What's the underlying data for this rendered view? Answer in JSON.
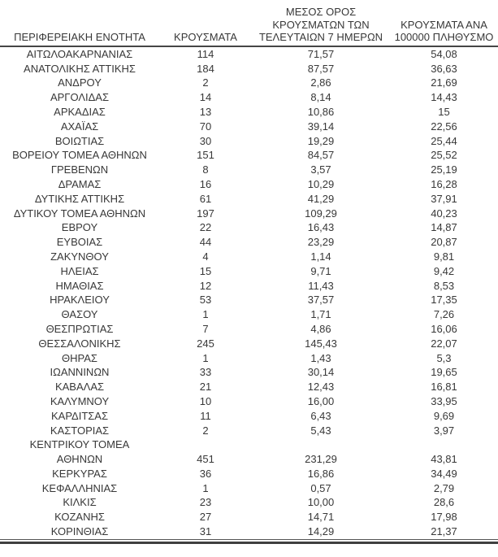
{
  "table": {
    "headers": [
      {
        "name": "region-unit",
        "lines": [
          "ΠΕΡΙΦΕΡΕΙΑΚΗ ΕΝΟΤΗΤΑ"
        ]
      },
      {
        "name": "cases",
        "lines": [
          "ΚΡΟΥΣΜΑΤΑ"
        ]
      },
      {
        "name": "avg-cases-7-days",
        "lines": [
          "ΜΕΣΟΣ ΟΡΟΣ",
          "ΚΡΟΥΣΜΑΤΩΝ ΤΩΝ",
          "ΤΕΛΕΥΤΑΙΩΝ 7 ΗΜΕΡΩΝ"
        ]
      },
      {
        "name": "cases-per-100k",
        "lines": [
          "ΚΡΟΥΣΜΑΤΑ ΑΝΑ",
          "100000 ΠΛΗΘΥΣΜΟ"
        ]
      }
    ],
    "rows": [
      [
        "ΑΙΤΩΛΟΑΚΑΡΝΑΝΙΑΣ",
        "114",
        "71,57",
        "54,08"
      ],
      [
        "ΑΝΑΤΟΛΙΚΗΣ ΑΤΤΙΚΗΣ",
        "184",
        "87,57",
        "36,63"
      ],
      [
        "ΑΝΔΡΟΥ",
        "2",
        "2,86",
        "21,69"
      ],
      [
        "ΑΡΓΟΛΙΔΑΣ",
        "14",
        "8,14",
        "14,43"
      ],
      [
        "ΑΡΚΑΔΙΑΣ",
        "13",
        "10,86",
        "15"
      ],
      [
        "ΑΧΑΪΑΣ",
        "70",
        "39,14",
        "22,56"
      ],
      [
        "ΒΟΙΩΤΙΑΣ",
        "30",
        "19,29",
        "25,44"
      ],
      [
        "ΒΟΡΕΙΟΥ ΤΟΜΕΑ ΑΘΗΝΩΝ",
        "151",
        "84,57",
        "25,52"
      ],
      [
        "ΓΡΕΒΕΝΩΝ",
        "8",
        "3,57",
        "25,19"
      ],
      [
        "ΔΡΑΜΑΣ",
        "16",
        "10,29",
        "16,28"
      ],
      [
        "ΔΥΤΙΚΗΣ ΑΤΤΙΚΗΣ",
        "61",
        "41,29",
        "37,91"
      ],
      [
        "ΔΥΤΙΚΟΥ ΤΟΜΕΑ ΑΘΗΝΩΝ",
        "197",
        "109,29",
        "40,23"
      ],
      [
        "ΕΒΡΟΥ",
        "22",
        "16,43",
        "14,87"
      ],
      [
        "ΕΥΒΟΙΑΣ",
        "44",
        "23,29",
        "20,87"
      ],
      [
        "ΖΑΚΥΝΘΟΥ",
        "4",
        "1,14",
        "9,81"
      ],
      [
        "ΗΛΕΙΑΣ",
        "15",
        "9,71",
        "9,42"
      ],
      [
        "ΗΜΑΘΙΑΣ",
        "12",
        "11,43",
        "8,53"
      ],
      [
        "ΗΡΑΚΛΕΙΟΥ",
        "53",
        "37,57",
        "17,35"
      ],
      [
        "ΘΑΣΟΥ",
        "1",
        "1,71",
        "7,26"
      ],
      [
        "ΘΕΣΠΡΩΤΙΑΣ",
        "7",
        "4,86",
        "16,06"
      ],
      [
        "ΘΕΣΣΑΛΟΝΙΚΗΣ",
        "245",
        "145,43",
        "22,07"
      ],
      [
        "ΘΗΡΑΣ",
        "1",
        "1,43",
        "5,3"
      ],
      [
        "ΙΩΑΝΝΙΝΩΝ",
        "33",
        "30,14",
        "19,65"
      ],
      [
        "ΚΑΒΑΛΑΣ",
        "21",
        "12,43",
        "16,81"
      ],
      [
        "ΚΑΛΥΜΝΟΥ",
        "10",
        "16,00",
        "33,95"
      ],
      [
        "ΚΑΡΔΙΤΣΑΣ",
        "11",
        "6,43",
        "9,69"
      ],
      [
        "ΚΑΣΤΟΡΙΑΣ",
        "2",
        "5,43",
        "3,97"
      ],
      [
        "ΚΕΝΤΡΙΚΟΥ ΤΟΜΕΑ\nΑΘΗΝΩΝ",
        "451",
        "231,29",
        "43,81"
      ],
      [
        "ΚΕΡΚΥΡΑΣ",
        "36",
        "16,86",
        "34,49"
      ],
      [
        "ΚΕΦΑΛΛΗΝΙΑΣ",
        "1",
        "0,57",
        "2,79"
      ],
      [
        "ΚΙΛΚΙΣ",
        "23",
        "10,00",
        "28,6"
      ],
      [
        "ΚΟΖΑΝΗΣ",
        "27",
        "14,71",
        "17,98"
      ],
      [
        "ΚΟΡΙΝΘΙΑΣ",
        "31",
        "14,29",
        "21,37"
      ]
    ],
    "cell_names": [
      "cell-region-unit",
      "cell-cases",
      "cell-avg-7-days",
      "cell-per-100k"
    ]
  }
}
